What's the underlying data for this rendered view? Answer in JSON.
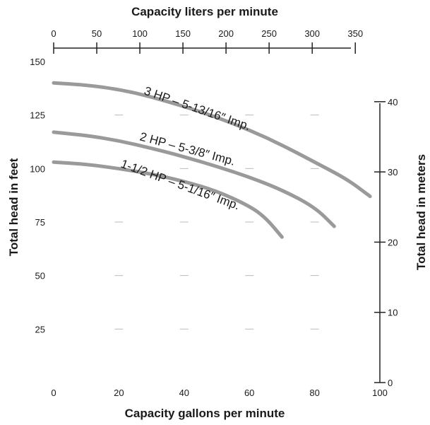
{
  "chart_data": {
    "type": "line",
    "title": "",
    "xlabel": "Capacity gallons per minute",
    "ylabel": "Total head in feet",
    "x_top_label": "Capacity liters per minute",
    "y_right_label": "Total head in meters",
    "xlim": [
      0,
      100
    ],
    "ylim": [
      0,
      150
    ],
    "x_ticks": [
      "0",
      "20",
      "40",
      "60",
      "80",
      "100"
    ],
    "y_ticks": [
      "25",
      "50",
      "75",
      "100",
      "125",
      "150"
    ],
    "x_top_ticks": [
      "0",
      "50",
      "100",
      "150",
      "200",
      "250",
      "300",
      "350"
    ],
    "x_top_lim": [
      0,
      378.5
    ],
    "y_right_ticks": [
      "0",
      "10",
      "20",
      "30",
      "40"
    ],
    "y_right_lim": [
      0,
      45.72
    ],
    "grid": false,
    "series": [
      {
        "name": "3 HP – 5-13/16″ Imp.",
        "x": [
          0,
          10,
          20,
          30,
          40,
          50,
          60,
          70,
          80,
          90,
          97
        ],
        "y": [
          140,
          139,
          137,
          133.5,
          129,
          124,
          118,
          111,
          103,
          95,
          87
        ]
      },
      {
        "name": "2 HP – 5-3/8″ Imp.",
        "x": [
          0,
          10,
          20,
          30,
          40,
          50,
          60,
          70,
          80,
          86
        ],
        "y": [
          117,
          115.5,
          113,
          109.5,
          105.5,
          101,
          96,
          90,
          82,
          73
        ]
      },
      {
        "name": "1-1/2 HP – 5-1/16″ Imp.",
        "x": [
          0,
          10,
          20,
          30,
          40,
          50,
          60,
          65,
          70
        ],
        "y": [
          103,
          102,
          100,
          97.5,
          94,
          89.5,
          82.5,
          77,
          68
        ]
      }
    ]
  }
}
